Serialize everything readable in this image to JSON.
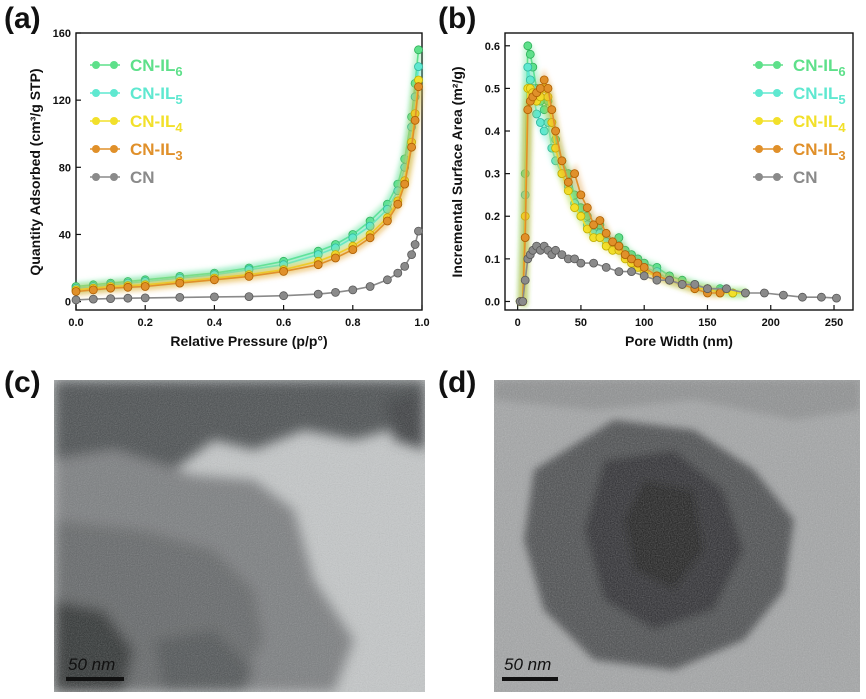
{
  "panels": {
    "a": "(a)",
    "b": "(b)",
    "c": "(c)",
    "d": "(d)"
  },
  "colors": {
    "CN-IL6": "#5ee08a",
    "CN-IL5": "#5fe8d0",
    "CN-IL4": "#f2e02a",
    "CN-IL3": "#e0902a",
    "CN": "#8a8a8a"
  },
  "chart_data": [
    {
      "type": "line",
      "ylabel": "Quantity Adsorbed (cm³/g STP)",
      "xlabel": "Relative Pressure (p/p°)",
      "xlim": [
        0.0,
        1.0
      ],
      "ylim": [
        -5,
        160
      ],
      "xticks": [
        "0.0",
        "0.2",
        "0.4",
        "0.6",
        "0.8",
        "1.0"
      ],
      "yticks": [
        "0",
        "40",
        "80",
        "120",
        "160"
      ],
      "legend_position": "top-left",
      "series": [
        {
          "name": "CN-IL6",
          "x": [
            0.0,
            0.05,
            0.1,
            0.15,
            0.2,
            0.3,
            0.4,
            0.5,
            0.6,
            0.7,
            0.75,
            0.8,
            0.85,
            0.9,
            0.93,
            0.95,
            0.97,
            0.98,
            0.99
          ],
          "y": [
            9,
            10,
            11,
            12,
            13,
            15,
            17,
            20,
            24,
            30,
            34,
            40,
            48,
            58,
            70,
            85,
            110,
            130,
            150
          ]
        },
        {
          "name": "CN-IL5",
          "x": [
            0.0,
            0.05,
            0.1,
            0.15,
            0.2,
            0.3,
            0.4,
            0.5,
            0.6,
            0.7,
            0.75,
            0.8,
            0.85,
            0.9,
            0.93,
            0.95,
            0.97,
            0.98,
            0.99
          ],
          "y": [
            8,
            9,
            10,
            11,
            12,
            14,
            16,
            19,
            22,
            28,
            32,
            38,
            45,
            55,
            66,
            80,
            104,
            122,
            140
          ]
        },
        {
          "name": "CN-IL4",
          "x": [
            0.0,
            0.05,
            0.1,
            0.15,
            0.2,
            0.3,
            0.4,
            0.5,
            0.6,
            0.7,
            0.75,
            0.8,
            0.85,
            0.9,
            0.93,
            0.95,
            0.97,
            0.98,
            0.99
          ],
          "y": [
            7,
            8,
            9,
            9.5,
            10,
            12,
            14,
            16,
            19,
            24,
            28,
            33,
            40,
            50,
            60,
            72,
            95,
            112,
            132
          ]
        },
        {
          "name": "CN-IL3",
          "x": [
            0.0,
            0.05,
            0.1,
            0.15,
            0.2,
            0.3,
            0.4,
            0.5,
            0.6,
            0.7,
            0.75,
            0.8,
            0.85,
            0.9,
            0.93,
            0.95,
            0.97,
            0.98,
            0.99
          ],
          "y": [
            6,
            7,
            8,
            8.5,
            9,
            11,
            13,
            15,
            18,
            22,
            26,
            31,
            38,
            48,
            58,
            70,
            92,
            108,
            128
          ]
        },
        {
          "name": "CN",
          "x": [
            0.0,
            0.05,
            0.1,
            0.15,
            0.2,
            0.3,
            0.4,
            0.5,
            0.6,
            0.7,
            0.75,
            0.8,
            0.85,
            0.9,
            0.93,
            0.95,
            0.97,
            0.98,
            0.99
          ],
          "y": [
            1,
            1.5,
            1.8,
            2,
            2.2,
            2.5,
            2.8,
            3,
            3.5,
            4.5,
            5.5,
            7,
            9,
            13,
            17,
            21,
            28,
            34,
            42
          ]
        }
      ]
    },
    {
      "type": "line",
      "ylabel": "Incremental Surface Area (m²/g)",
      "xlabel": "Pore Width (nm)",
      "xlim": [
        -10,
        265
      ],
      "ylim": [
        -0.02,
        0.63
      ],
      "xticks": [
        "0",
        "50",
        "100",
        "150",
        "200",
        "250"
      ],
      "yticks": [
        "0.0",
        "0.1",
        "0.2",
        "0.3",
        "0.4",
        "0.5",
        "0.6"
      ],
      "legend_position": "top-right",
      "series": [
        {
          "name": "CN-IL6",
          "x": [
            2,
            4,
            6,
            8,
            10,
            12,
            15,
            18,
            21,
            24,
            27,
            30,
            35,
            40,
            45,
            50,
            55,
            60,
            65,
            70,
            75,
            80,
            85,
            90,
            95,
            100,
            110,
            120,
            130,
            140,
            150,
            160,
            170,
            180
          ],
          "y": [
            0.0,
            0.0,
            0.3,
            0.6,
            0.58,
            0.55,
            0.5,
            0.47,
            0.45,
            0.47,
            0.42,
            0.38,
            0.33,
            0.3,
            0.25,
            0.22,
            0.2,
            0.17,
            0.18,
            0.15,
            0.14,
            0.15,
            0.12,
            0.11,
            0.1,
            0.09,
            0.08,
            0.06,
            0.05,
            0.04,
            0.03,
            0.03,
            0.02,
            0.02
          ]
        },
        {
          "name": "CN-IL5",
          "x": [
            2,
            4,
            6,
            8,
            10,
            12,
            15,
            18,
            21,
            24,
            27,
            30,
            35,
            40,
            45,
            50,
            55,
            60,
            65,
            70,
            75,
            80,
            85,
            90,
            95,
            100,
            110,
            120,
            130,
            140,
            150,
            160,
            170,
            180
          ],
          "y": [
            0.0,
            0.0,
            0.25,
            0.55,
            0.52,
            0.5,
            0.44,
            0.42,
            0.4,
            0.42,
            0.36,
            0.33,
            0.3,
            0.27,
            0.23,
            0.2,
            0.18,
            0.16,
            0.16,
            0.14,
            0.13,
            0.13,
            0.11,
            0.1,
            0.09,
            0.08,
            0.07,
            0.05,
            0.04,
            0.035,
            0.03,
            0.025,
            0.02,
            0.02
          ]
        },
        {
          "name": "CN-IL4",
          "x": [
            2,
            4,
            6,
            8,
            10,
            12,
            15,
            18,
            21,
            24,
            27,
            30,
            35,
            40,
            45,
            50,
            55,
            60,
            65,
            70,
            75,
            80,
            85,
            90,
            95,
            100,
            110,
            120,
            130,
            140,
            150,
            160,
            170,
            180
          ],
          "y": [
            0.0,
            0.0,
            0.2,
            0.5,
            0.5,
            0.49,
            0.47,
            0.48,
            0.5,
            0.48,
            0.42,
            0.36,
            0.3,
            0.26,
            0.22,
            0.2,
            0.17,
            0.15,
            0.15,
            0.13,
            0.12,
            0.12,
            0.1,
            0.09,
            0.08,
            0.07,
            0.06,
            0.05,
            0.04,
            0.03,
            0.03,
            0.02,
            0.02,
            0.02
          ]
        },
        {
          "name": "CN-IL3",
          "x": [
            2,
            4,
            6,
            8,
            10,
            12,
            15,
            18,
            21,
            24,
            27,
            30,
            35,
            40,
            45,
            50,
            55,
            60,
            65,
            70,
            75,
            80,
            85,
            90,
            95,
            100,
            110,
            120,
            130,
            140,
            150,
            160
          ],
          "y": [
            0.0,
            0.0,
            0.15,
            0.45,
            0.47,
            0.48,
            0.49,
            0.5,
            0.52,
            0.5,
            0.45,
            0.4,
            0.33,
            0.28,
            0.3,
            0.25,
            0.22,
            0.18,
            0.19,
            0.16,
            0.14,
            0.13,
            0.11,
            0.1,
            0.09,
            0.08,
            0.06,
            0.05,
            0.04,
            0.03,
            0.02,
            0.02
          ]
        },
        {
          "name": "CN",
          "x": [
            2,
            4,
            6,
            8,
            10,
            12,
            15,
            18,
            21,
            24,
            27,
            30,
            35,
            40,
            45,
            50,
            60,
            70,
            80,
            90,
            100,
            110,
            120,
            130,
            140,
            150,
            165,
            180,
            195,
            210,
            225,
            240,
            252
          ],
          "y": [
            0.0,
            0.0,
            0.05,
            0.1,
            0.11,
            0.12,
            0.13,
            0.12,
            0.13,
            0.12,
            0.11,
            0.12,
            0.11,
            0.1,
            0.1,
            0.09,
            0.09,
            0.08,
            0.07,
            0.07,
            0.06,
            0.05,
            0.05,
            0.04,
            0.04,
            0.03,
            0.03,
            0.02,
            0.02,
            0.015,
            0.01,
            0.01,
            0.008
          ]
        }
      ]
    }
  ],
  "scalebars": {
    "c": "50 nm",
    "d": "50 nm"
  }
}
